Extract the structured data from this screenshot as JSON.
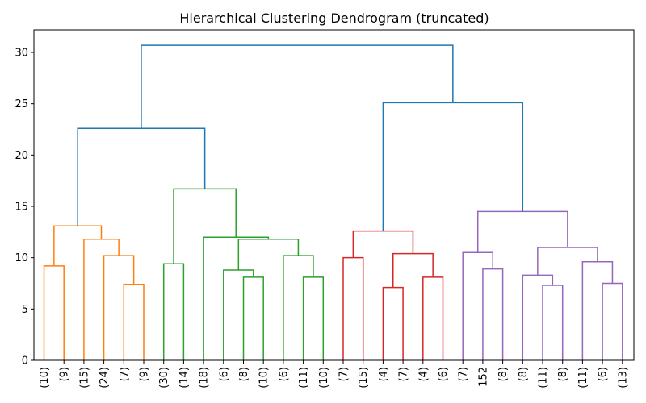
{
  "chart_data": {
    "type": "dendrogram",
    "title": "Hierarchical Clustering Dendrogram (truncated)",
    "xlabel": "",
    "ylabel": "",
    "ylim": [
      0,
      32.2
    ],
    "yticks": [
      0,
      5,
      10,
      15,
      20,
      25,
      30
    ],
    "leaf_labels": [
      "(10)",
      "(9)",
      "(15)",
      "(24)",
      "(7)",
      "(9)",
      "(30)",
      "(14)",
      "(18)",
      "(6)",
      "(8)",
      "(10)",
      "(6)",
      "(11)",
      "(10)",
      "(7)",
      "(15)",
      "(4)",
      "(7)",
      "(4)",
      "(6)",
      "(7)",
      "152",
      "(8)",
      "(8)",
      "(11)",
      "(8)",
      "(11)",
      "(6)",
      "(13)"
    ],
    "colors": {
      "orange": "#ff7f0e",
      "green": "#2ca02c",
      "red": "#d62728",
      "purple": "#9467bd",
      "blue": "#1f77b4"
    },
    "links": [
      {
        "left": 4,
        "right": 5,
        "height": 7.4,
        "color": "orange"
      },
      {
        "left": 3,
        "right": "L1",
        "height": 10.2,
        "color": "orange"
      },
      {
        "left": 2,
        "right": "L2",
        "height": 11.8,
        "color": "orange"
      },
      {
        "left": 0,
        "right": 1,
        "height": 9.2,
        "color": "orange"
      },
      {
        "left": "L4",
        "right": "L3",
        "height": 13.1,
        "color": "orange"
      },
      {
        "left": 6,
        "right": 7,
        "height": 9.4,
        "color": "green"
      },
      {
        "left": 10,
        "right": 11,
        "height": 8.1,
        "color": "green"
      },
      {
        "left": 9,
        "right": "L7",
        "height": 8.8,
        "color": "green"
      },
      {
        "left": 13,
        "right": 14,
        "height": 8.1,
        "color": "green"
      },
      {
        "left": 12,
        "right": "L9",
        "height": 10.2,
        "color": "green"
      },
      {
        "left": "L8",
        "right": "L10",
        "height": 11.8,
        "color": "green"
      },
      {
        "left": 8,
        "right": "L11",
        "height": 12.0,
        "color": "green"
      },
      {
        "left": "L6",
        "right": "L12",
        "height": 16.7,
        "color": "green"
      },
      {
        "left": "L5",
        "right": "L13",
        "height": 22.6,
        "color": "blue"
      },
      {
        "left": 15,
        "right": 16,
        "height": 10.0,
        "color": "red"
      },
      {
        "left": 17,
        "right": 18,
        "height": 7.1,
        "color": "red"
      },
      {
        "left": 19,
        "right": 20,
        "height": 8.1,
        "color": "red"
      },
      {
        "left": "L16",
        "right": "L17",
        "height": 10.4,
        "color": "red"
      },
      {
        "left": "L15",
        "right": "L18",
        "height": 12.6,
        "color": "red"
      },
      {
        "left": 22,
        "right": 23,
        "height": 8.9,
        "color": "purple"
      },
      {
        "left": 21,
        "right": "L20",
        "height": 10.5,
        "color": "purple"
      },
      {
        "left": 25,
        "right": 26,
        "height": 7.3,
        "color": "purple"
      },
      {
        "left": 24,
        "right": "L22",
        "height": 8.3,
        "color": "purple"
      },
      {
        "left": 28,
        "right": 29,
        "height": 7.5,
        "color": "purple"
      },
      {
        "left": 27,
        "right": "L24",
        "height": 9.6,
        "color": "purple"
      },
      {
        "left": "L23",
        "right": "L25",
        "height": 11.0,
        "color": "purple"
      },
      {
        "left": "L21",
        "right": "L26",
        "height": 14.5,
        "color": "purple"
      },
      {
        "left": "L19",
        "right": "L27",
        "height": 25.1,
        "color": "blue"
      },
      {
        "left": "L14",
        "right": "L28",
        "height": 30.7,
        "color": "blue"
      }
    ]
  }
}
